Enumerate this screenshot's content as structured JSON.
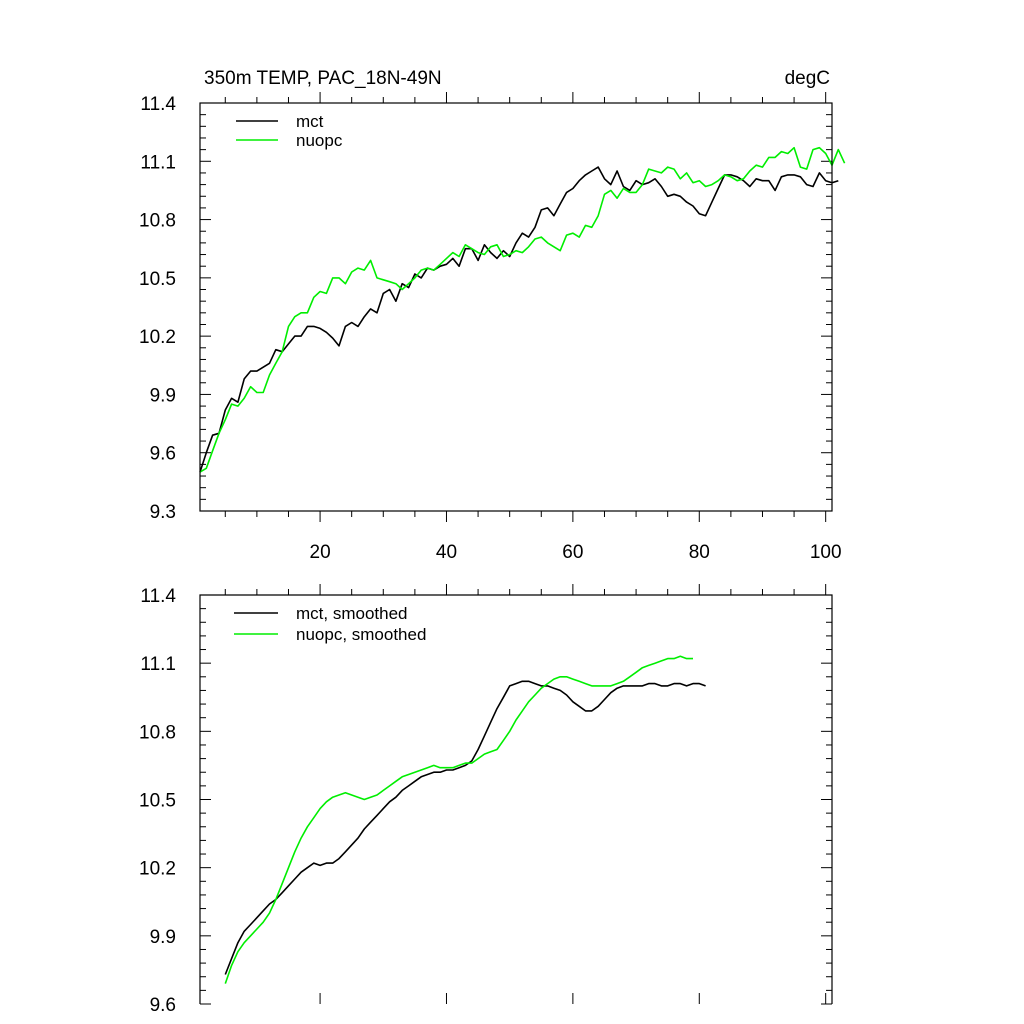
{
  "chart_data": [
    {
      "type": "line",
      "title_left": "350m TEMP, PAC_18N-49N",
      "title_right": "degC",
      "xlim": [
        1,
        101
      ],
      "ylim": [
        9.3,
        11.4
      ],
      "x_ticks": [
        20,
        40,
        60,
        80,
        100
      ],
      "x_tick_labels": [
        "20",
        "40",
        "60",
        "80",
        "100"
      ],
      "y_ticks": [
        9.3,
        9.6,
        9.9,
        10.2,
        10.5,
        10.8,
        11.1,
        11.4
      ],
      "y_tick_labels": [
        "9.3",
        "9.6",
        "9.9",
        "10.2",
        "10.5",
        "10.8",
        "11.1",
        "11.4"
      ],
      "series": [
        {
          "name": "mct",
          "color": "#000000",
          "x_start": 1,
          "x_step": 1,
          "values": [
            9.5,
            9.6,
            9.69,
            9.7,
            9.82,
            9.88,
            9.86,
            9.98,
            10.02,
            10.02,
            10.04,
            10.06,
            10.13,
            10.12,
            10.16,
            10.2,
            10.2,
            10.25,
            10.25,
            10.24,
            10.22,
            10.19,
            10.15,
            10.25,
            10.27,
            10.25,
            10.3,
            10.34,
            10.32,
            10.42,
            10.44,
            10.38,
            10.47,
            10.45,
            10.52,
            10.5,
            10.55,
            10.54,
            10.56,
            10.57,
            10.6,
            10.56,
            10.65,
            10.65,
            10.59,
            10.67,
            10.63,
            10.6,
            10.64,
            10.61,
            10.68,
            10.73,
            10.71,
            10.76,
            10.85,
            10.86,
            10.82,
            10.88,
            10.94,
            10.96,
            11.0,
            11.03,
            11.05,
            11.07,
            11.01,
            10.98,
            11.05,
            10.97,
            10.95,
            11.0,
            10.98,
            10.99,
            11.01,
            10.97,
            10.92,
            10.93,
            10.92,
            10.89,
            10.87,
            10.83,
            10.82,
            10.89,
            10.96,
            11.03,
            11.03,
            11.02,
            11.0,
            10.97,
            11.01,
            11.0,
            11.0,
            10.95,
            11.02,
            11.03,
            11.03,
            11.02,
            10.98,
            10.97,
            11.04,
            11.0,
            10.99,
            11.0
          ]
        },
        {
          "name": "nuopc",
          "color": "#00ee00",
          "x_start": 1,
          "x_step": 1,
          "values": [
            9.5,
            9.52,
            9.61,
            9.7,
            9.77,
            9.85,
            9.84,
            9.88,
            9.94,
            9.91,
            9.91,
            10.0,
            10.06,
            10.12,
            10.25,
            10.3,
            10.32,
            10.32,
            10.4,
            10.43,
            10.42,
            10.5,
            10.5,
            10.47,
            10.53,
            10.55,
            10.54,
            10.59,
            10.5,
            10.49,
            10.48,
            10.47,
            10.44,
            10.47,
            10.5,
            10.54,
            10.55,
            10.54,
            10.57,
            10.6,
            10.63,
            10.61,
            10.67,
            10.65,
            10.63,
            10.62,
            10.66,
            10.67,
            10.61,
            10.62,
            10.64,
            10.63,
            10.66,
            10.7,
            10.71,
            10.68,
            10.66,
            10.64,
            10.72,
            10.73,
            10.71,
            10.77,
            10.76,
            10.82,
            10.93,
            10.95,
            10.91,
            10.96,
            10.94,
            10.94,
            10.98,
            11.06,
            11.05,
            11.04,
            11.07,
            11.06,
            11.01,
            11.04,
            10.99,
            11.0,
            10.97,
            10.98,
            11.0,
            11.03,
            11.02,
            11.0,
            11.01,
            11.05,
            11.08,
            11.07,
            11.12,
            11.12,
            11.15,
            11.14,
            11.17,
            11.07,
            11.06,
            11.16,
            11.17,
            11.14,
            11.08,
            11.16,
            11.09
          ]
        }
      ],
      "legend": [
        "mct",
        "nuopc"
      ],
      "legend_position": "top-left"
    },
    {
      "type": "line",
      "xlim": [
        1,
        101
      ],
      "ylim": [
        9.6,
        11.4
      ],
      "x_ticks": [
        20,
        40,
        60,
        80,
        100
      ],
      "y_ticks": [
        9.6,
        9.9,
        10.2,
        10.5,
        10.8,
        11.1,
        11.4
      ],
      "y_tick_labels": [
        "9.6",
        "9.9",
        "10.2",
        "10.5",
        "10.8",
        "11.1",
        "11.4"
      ],
      "series": [
        {
          "name": "mct, smoothed",
          "color": "#000000",
          "x_start": 5,
          "x_step": 1,
          "values": [
            9.73,
            9.8,
            9.87,
            9.92,
            9.95,
            9.98,
            10.01,
            10.04,
            10.06,
            10.09,
            10.12,
            10.15,
            10.18,
            10.2,
            10.22,
            10.21,
            10.22,
            10.22,
            10.24,
            10.27,
            10.3,
            10.33,
            10.37,
            10.4,
            10.43,
            10.46,
            10.49,
            10.51,
            10.54,
            10.56,
            10.58,
            10.6,
            10.61,
            10.62,
            10.62,
            10.63,
            10.63,
            10.64,
            10.65,
            10.67,
            10.72,
            10.78,
            10.84,
            10.9,
            10.95,
            11.0,
            11.01,
            11.02,
            11.02,
            11.01,
            11.0,
            11.0,
            10.99,
            10.98,
            10.96,
            10.93,
            10.91,
            10.89,
            10.89,
            10.91,
            10.94,
            10.97,
            10.99,
            11.0,
            11.0,
            11.0,
            11.0,
            11.01,
            11.01,
            11.0,
            11.0,
            11.01,
            11.01,
            11.0,
            11.01,
            11.01,
            11.0
          ]
        },
        {
          "name": "nuopc, smoothed",
          "color": "#00ee00",
          "x_start": 5,
          "x_step": 1,
          "values": [
            9.69,
            9.77,
            9.83,
            9.87,
            9.9,
            9.93,
            9.96,
            10.0,
            10.06,
            10.13,
            10.2,
            10.27,
            10.33,
            10.38,
            10.42,
            10.46,
            10.49,
            10.51,
            10.52,
            10.53,
            10.52,
            10.51,
            10.5,
            10.51,
            10.52,
            10.54,
            10.56,
            10.58,
            10.6,
            10.61,
            10.62,
            10.63,
            10.64,
            10.65,
            10.64,
            10.64,
            10.64,
            10.65,
            10.66,
            10.66,
            10.68,
            10.7,
            10.71,
            10.72,
            10.76,
            10.8,
            10.85,
            10.89,
            10.93,
            10.96,
            10.99,
            11.01,
            11.03,
            11.04,
            11.04,
            11.03,
            11.02,
            11.01,
            11.0,
            11.0,
            11.0,
            11.0,
            11.01,
            11.02,
            11.04,
            11.06,
            11.08,
            11.09,
            11.1,
            11.11,
            11.12,
            11.12,
            11.13,
            11.12,
            11.12
          ]
        }
      ],
      "legend": [
        "mct, smoothed",
        "nuopc, smoothed"
      ],
      "legend_position": "top-left"
    }
  ]
}
